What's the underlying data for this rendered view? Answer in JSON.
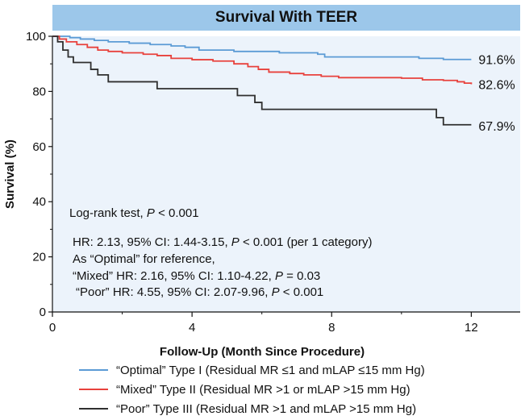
{
  "chart_data": {
    "type": "line",
    "title": "Survival With TEER",
    "xlabel": "Follow-Up (Month Since Procedure)",
    "ylabel": "Survival (%)",
    "xlim": [
      0,
      13.4
    ],
    "ylim": [
      0,
      100
    ],
    "xticks": [
      0,
      4,
      8,
      12
    ],
    "yticks": [
      0,
      20,
      40,
      60,
      80,
      100
    ],
    "grid": false,
    "legend_position": "bottom",
    "series": [
      {
        "name": "“Optimal” Type I (Residual MR ≤1 and mLAP ≤15 mm Hg)",
        "color": "#5b9bd5",
        "end_label": "91.6%",
        "points": [
          [
            0,
            100
          ],
          [
            0.5,
            99.5
          ],
          [
            0.8,
            99
          ],
          [
            1.2,
            98.5
          ],
          [
            1.6,
            98
          ],
          [
            2.2,
            97.5
          ],
          [
            2.8,
            97
          ],
          [
            3.4,
            96.5
          ],
          [
            3.8,
            96
          ],
          [
            4.2,
            95
          ],
          [
            5.2,
            94.5
          ],
          [
            6.5,
            94
          ],
          [
            7.6,
            93.5
          ],
          [
            7.8,
            92.5
          ],
          [
            9,
            92.5
          ],
          [
            10.5,
            92
          ],
          [
            11.2,
            91.6
          ],
          [
            12,
            91.6
          ]
        ]
      },
      {
        "name": "“Mixed” Type II (Residual MR >1 or mLAP >15 mm Hg)",
        "color": "#e8413c",
        "end_label": "82.6%",
        "points": [
          [
            0,
            100
          ],
          [
            0.2,
            99
          ],
          [
            0.4,
            98
          ],
          [
            0.7,
            97
          ],
          [
            1.0,
            96
          ],
          [
            1.3,
            95
          ],
          [
            1.6,
            94.5
          ],
          [
            2.0,
            94
          ],
          [
            2.6,
            93.5
          ],
          [
            3.0,
            93
          ],
          [
            3.4,
            92
          ],
          [
            4.0,
            91.5
          ],
          [
            4.6,
            91
          ],
          [
            5.2,
            90
          ],
          [
            5.6,
            89
          ],
          [
            5.9,
            88
          ],
          [
            6.2,
            87
          ],
          [
            6.8,
            86.5
          ],
          [
            7.2,
            86
          ],
          [
            7.7,
            85.5
          ],
          [
            8.2,
            85
          ],
          [
            9.5,
            85
          ],
          [
            10,
            84.8
          ],
          [
            10.6,
            84.2
          ],
          [
            11.2,
            84
          ],
          [
            11.6,
            83.5
          ],
          [
            11.8,
            83
          ],
          [
            12,
            82.6
          ]
        ]
      },
      {
        "name": "“Poor” Type III (Residual MR >1 and mLAP >15 mm Hg)",
        "color": "#2f2f2f",
        "end_label": "67.9%",
        "points": [
          [
            0,
            100
          ],
          [
            0.15,
            98
          ],
          [
            0.3,
            95
          ],
          [
            0.45,
            92.5
          ],
          [
            0.6,
            90.5
          ],
          [
            1.1,
            88
          ],
          [
            1.3,
            86
          ],
          [
            1.6,
            83.5
          ],
          [
            2.6,
            83.5
          ],
          [
            3.0,
            81
          ],
          [
            5.0,
            81
          ],
          [
            5.3,
            78.5
          ],
          [
            5.8,
            76
          ],
          [
            6.0,
            73.5
          ],
          [
            6.8,
            73.5
          ],
          [
            10.5,
            73.5
          ],
          [
            11.0,
            70.5
          ],
          [
            11.2,
            67.9
          ],
          [
            12,
            67.9
          ]
        ]
      }
    ],
    "annotations": {
      "logrank_prefix": "Log-rank test, ",
      "logrank_p": "P",
      "logrank_suffix": " < 0.001",
      "hr_prefix": "HR: 2.13, 95% CI: 1.44-3.15, ",
      "hr_p": "P",
      "hr_suffix": " < 0.001 (per 1 category)",
      "reference_line": "As “Optimal” for reference,",
      "mixed_prefix": "“Mixed” HR: 2.16, 95% CI: 1.10-4.22, ",
      "mixed_p": "P",
      "mixed_suffix": " = 0.03",
      "poor_prefix": "“Poor”  HR: 4.55, 95% CI: 2.07-9.96, ",
      "poor_p": "P",
      "poor_suffix": " < 0.001"
    }
  }
}
